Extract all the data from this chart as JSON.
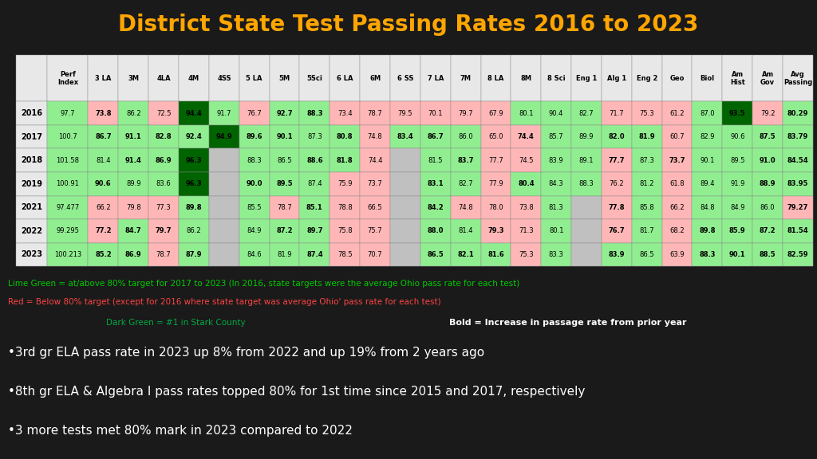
{
  "title": "District State Test Passing Rates 2016 to 2023",
  "bg_color": "#1a1a1a",
  "title_color": "#FFA500",
  "years": [
    "2016",
    "2017",
    "2018",
    "2019",
    "2021",
    "2022",
    "2023"
  ],
  "perf_index": [
    "97.7",
    "100.7",
    "101.58",
    "100.91",
    "97.477",
    "99.295",
    "100.213"
  ],
  "perf_bold": [
    false,
    true,
    true,
    false,
    false,
    true,
    true
  ],
  "columns": [
    "Perf\nIndex",
    "3 LA",
    "3M",
    "4LA",
    "4M",
    "4SS",
    "5 LA",
    "5M",
    "5Sci",
    "6 LA",
    "6M",
    "6 SS",
    "7 LA",
    "7M",
    "8 LA",
    "8M",
    "8 Sci",
    "Eng 1",
    "Alg 1",
    "Eng 2",
    "Geo",
    "Biol",
    "Am\nHist",
    "Am\nGov",
    "Avg\nPassing"
  ],
  "table_data": [
    [
      "97.7",
      "73.8",
      "86.2",
      "72.5",
      "94.4",
      "91.7",
      "76.7",
      "92.7",
      "88.3",
      "73.4",
      "78.7",
      "79.5",
      "70.1",
      "79.7",
      "67.9",
      "80.1",
      "90.4",
      "82.7",
      "71.7",
      "75.3",
      "61.2",
      "87.0",
      "93.5",
      "79.2",
      "80.29"
    ],
    [
      "100.7",
      "86.7",
      "91.1",
      "82.8",
      "92.4",
      "94.9",
      "89.6",
      "90.1",
      "87.3",
      "80.8",
      "74.8",
      "83.4",
      "86.7",
      "86.0",
      "65.0",
      "74.4",
      "85.7",
      "89.9",
      "82.0",
      "81.9",
      "60.7",
      "82.9",
      "90.6",
      "87.5",
      "83.79"
    ],
    [
      "101.58",
      "81.4",
      "91.4",
      "86.9",
      "96.3",
      "",
      "88.3",
      "86.5",
      "88.6",
      "81.8",
      "74.4",
      "",
      "81.5",
      "83.7",
      "77.7",
      "74.5",
      "83.9",
      "89.1",
      "77.7",
      "87.3",
      "73.7",
      "90.1",
      "89.5",
      "91.0",
      "84.54"
    ],
    [
      "100.91",
      "90.6",
      "89.9",
      "83.6",
      "96.3",
      "",
      "90.0",
      "89.5",
      "87.4",
      "75.9",
      "73.7",
      "",
      "83.1",
      "82.7",
      "77.9",
      "80.4",
      "84.3",
      "88.3",
      "76.2",
      "81.2",
      "61.8",
      "89.4",
      "91.9",
      "88.9",
      "83.95"
    ],
    [
      "97.477",
      "66.2",
      "79.8",
      "77.3",
      "89.8",
      "",
      "85.5",
      "78.7",
      "85.1",
      "78.8",
      "66.5",
      "",
      "84.2",
      "74.8",
      "78.0",
      "73.8",
      "81.3",
      "",
      "77.8",
      "85.8",
      "66.2",
      "84.8",
      "84.9",
      "86.0",
      "79.27"
    ],
    [
      "99.295",
      "77.2",
      "84.7",
      "79.7",
      "86.2",
      "",
      "84.9",
      "87.2",
      "89.7",
      "75.8",
      "75.7",
      "",
      "88.0",
      "81.4",
      "79.3",
      "71.3",
      "80.1",
      "",
      "76.7",
      "81.7",
      "68.2",
      "89.8",
      "85.9",
      "87.2",
      "81.54"
    ],
    [
      "100.213",
      "85.2",
      "86.9",
      "78.7",
      "87.9",
      "",
      "84.6",
      "81.9",
      "87.4",
      "78.5",
      "70.7",
      "",
      "86.5",
      "82.1",
      "81.6",
      "75.3",
      "83.3",
      "",
      "83.9",
      "86.5",
      "63.9",
      "88.3",
      "90.1",
      "88.5",
      "82.59"
    ]
  ],
  "bold_cells": [
    [
      [
        0,
        1
      ],
      [
        0,
        4
      ],
      [
        0,
        7
      ],
      [
        0,
        8
      ],
      [
        0,
        22
      ],
      [
        0,
        24
      ]
    ],
    [
      [
        1,
        1
      ],
      [
        1,
        2
      ],
      [
        1,
        3
      ],
      [
        1,
        4
      ],
      [
        1,
        5
      ],
      [
        1,
        6
      ],
      [
        1,
        7
      ],
      [
        1,
        9
      ],
      [
        1,
        11
      ],
      [
        1,
        12
      ],
      [
        1,
        15
      ],
      [
        1,
        18
      ],
      [
        1,
        19
      ],
      [
        1,
        23
      ],
      [
        1,
        24
      ]
    ],
    [
      [
        2,
        2
      ],
      [
        2,
        3
      ],
      [
        2,
        4
      ],
      [
        2,
        8
      ],
      [
        2,
        9
      ],
      [
        2,
        13
      ],
      [
        2,
        18
      ],
      [
        2,
        20
      ],
      [
        2,
        23
      ],
      [
        2,
        24
      ]
    ],
    [
      [
        3,
        1
      ],
      [
        3,
        4
      ],
      [
        3,
        6
      ],
      [
        3,
        7
      ],
      [
        3,
        12
      ],
      [
        3,
        15
      ],
      [
        3,
        23
      ],
      [
        3,
        24
      ]
    ],
    [
      [
        4,
        4
      ],
      [
        4,
        8
      ],
      [
        4,
        12
      ],
      [
        4,
        18
      ],
      [
        4,
        24
      ]
    ],
    [
      [
        5,
        1
      ],
      [
        5,
        2
      ],
      [
        5,
        3
      ],
      [
        5,
        7
      ],
      [
        5,
        8
      ],
      [
        5,
        12
      ],
      [
        5,
        14
      ],
      [
        5,
        18
      ],
      [
        5,
        21
      ],
      [
        5,
        22
      ],
      [
        5,
        23
      ],
      [
        5,
        24
      ]
    ],
    [
      [
        6,
        1
      ],
      [
        6,
        2
      ],
      [
        6,
        4
      ],
      [
        6,
        8
      ],
      [
        6,
        12
      ],
      [
        6,
        13
      ],
      [
        6,
        14
      ],
      [
        6,
        17
      ],
      [
        6,
        18
      ],
      [
        6,
        21
      ],
      [
        6,
        22
      ],
      [
        6,
        23
      ],
      [
        6,
        24
      ]
    ]
  ],
  "cell_colors": {
    "lime": "#90EE90",
    "dark_green": "#006400",
    "red_pink": "#FFB6C1",
    "light_red": "#FF6666",
    "white": "#FFFFFF",
    "light_gray": "#E8E8E8",
    "header_gray": "#D3D3D3"
  },
  "legend_lime": "Lime Green = at/above 80% target for 2017 to 2023 (In 2016, state targets were the average Ohio pass rate for each test)",
  "legend_red": "Red = Below 80% target (except for 2016 where state target was average Ohio' pass rate for each test)",
  "legend_dark_green": "Dark Green = #1 in Stark County",
  "legend_bold": "Bold = Increase in passage rate from prior year",
  "bullet1": "•3rd gr ELA pass rate in 2023 up 8% from 2022 and up 19% from 2 years ago",
  "bullet2": "•8th gr ELA & Algebra I pass rates topped 80% for 1st time since 2015 and 2017, respectively",
  "bullet3": "•3 more tests met 80% mark in 2023 compared to 2022"
}
